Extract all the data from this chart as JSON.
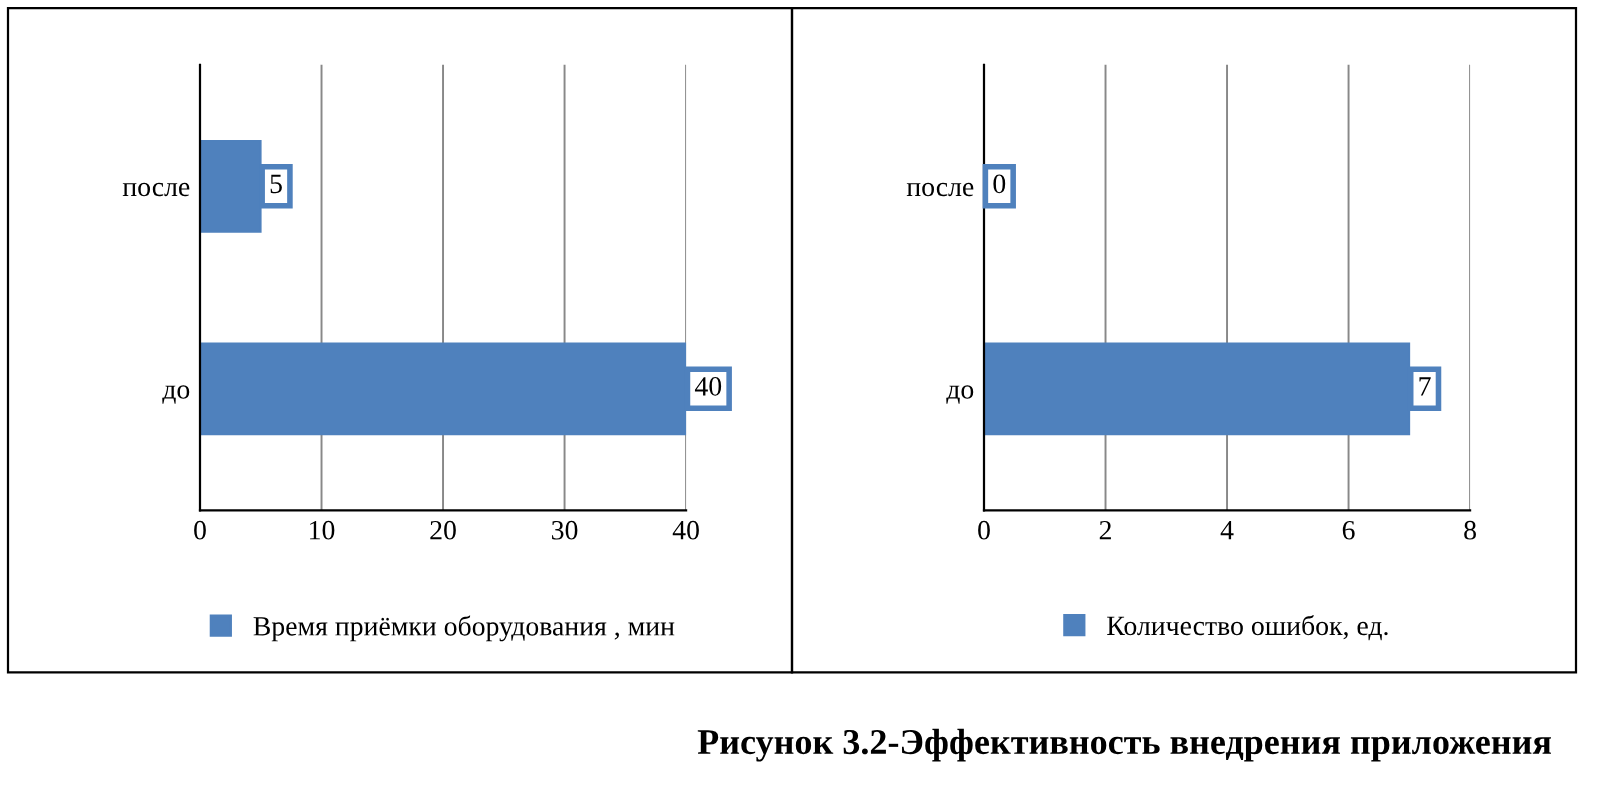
{
  "chart_data": [
    {
      "type": "bar",
      "orientation": "horizontal",
      "categories": [
        "после",
        "до"
      ],
      "series": [
        {
          "name": "Время приёмки оборудования , мин",
          "color": "#4f81bd",
          "values": [
            5,
            40
          ]
        }
      ],
      "xlim": [
        0,
        40
      ],
      "xticks": [
        0,
        10,
        20,
        30,
        40
      ],
      "grid": "x",
      "legend": "bottom",
      "data_labels": true
    },
    {
      "type": "bar",
      "orientation": "horizontal",
      "categories": [
        "после",
        "до"
      ],
      "series": [
        {
          "name": "Количество ошибок, ед.",
          "color": "#4f81bd",
          "values": [
            0,
            7
          ]
        }
      ],
      "xlim": [
        0,
        8
      ],
      "xticks": [
        0,
        2,
        4,
        6,
        8
      ],
      "grid": "x",
      "legend": "bottom",
      "data_labels": true,
      "annotations": [
        "Рисунок 3.2-Эффективность внедрения приложения"
      ]
    }
  ]
}
